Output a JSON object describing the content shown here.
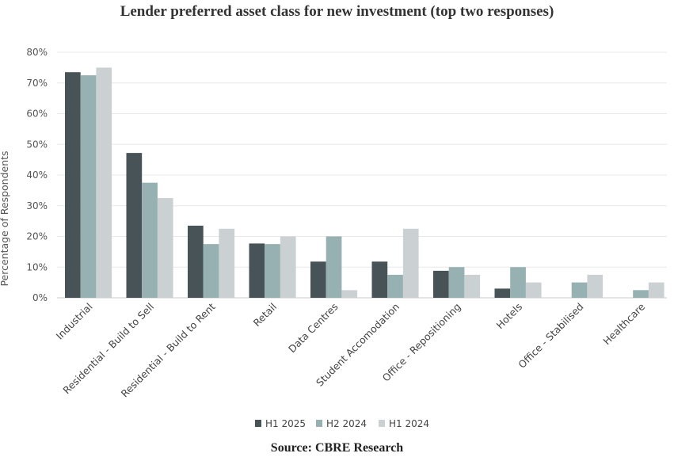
{
  "chart_data": {
    "type": "bar",
    "title": "Lender preferred asset class for new investment (top two responses)",
    "source": "Source: CBRE Research",
    "ylabel": "Percentage of Respondents",
    "xlabel": "",
    "ylim": [
      0,
      80
    ],
    "yticks": [
      "0%",
      "10%",
      "20%",
      "30%",
      "40%",
      "50%",
      "60%",
      "70%",
      "80%"
    ],
    "grid": true,
    "legend_position": "bottom-center",
    "categories": [
      "Industrial",
      "Residential - Build to Sell",
      "Residential - Build to Rent",
      "Retail",
      "Data Centres",
      "Student Accomodation",
      "Office - Repositioning",
      "Hotels",
      "Office - Stabilised",
      "Healthcare"
    ],
    "series": [
      {
        "name": "H1 2025",
        "color": "#475357",
        "values": [
          73.5,
          47.2,
          23.5,
          17.7,
          11.8,
          11.8,
          8.8,
          3.0,
          0,
          0
        ]
      },
      {
        "name": "H2 2024",
        "color": "#97b0b1",
        "values": [
          72.5,
          37.5,
          17.5,
          17.5,
          20.0,
          7.5,
          10.0,
          10.0,
          5.0,
          2.5
        ]
      },
      {
        "name": "H1 2024",
        "color": "#cbd1d3",
        "values": [
          75.0,
          32.5,
          22.5,
          20.0,
          2.5,
          22.5,
          7.5,
          5.0,
          7.5,
          5.0
        ]
      }
    ]
  }
}
